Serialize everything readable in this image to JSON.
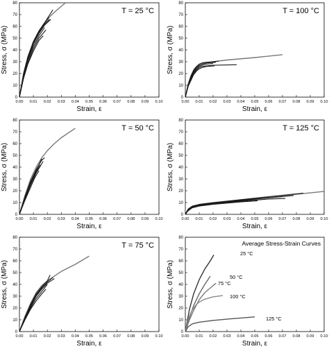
{
  "chart_data": [
    {
      "type": "line",
      "panel": "T = 25 °C",
      "temperature_label": "T = 25 °C",
      "xlabel": "Strain, ε",
      "ylabel": "Stress, σ (MPa)",
      "xlim": [
        0,
        0.1
      ],
      "ylim": [
        0,
        80
      ],
      "xticks": [
        "0.00",
        "0.01",
        "0.02",
        "0.03",
        "0.04",
        "0.05",
        "0.06",
        "0.07",
        "0.08",
        "0.09",
        "0.10"
      ],
      "yticks": [
        "0",
        "10",
        "20",
        "30",
        "40",
        "50",
        "60",
        "70",
        "80"
      ],
      "series": [
        {
          "x": [
            0,
            0.003,
            0.006,
            0.01,
            0.014,
            0.018,
            0.022,
            0.026,
            0.03,
            0.033
          ],
          "y": [
            0,
            20,
            34,
            47,
            56,
            63,
            68.5,
            73,
            77,
            80
          ],
          "color": "#777777"
        },
        {
          "x": [
            0,
            0.003,
            0.006,
            0.01,
            0.014,
            0.018,
            0.021
          ],
          "y": [
            0,
            20,
            34,
            47,
            56,
            63,
            67.5
          ]
        },
        {
          "x": [
            0,
            0.003,
            0.006,
            0.01,
            0.014,
            0.018,
            0.0225
          ],
          "y": [
            0,
            19,
            32,
            45,
            54,
            61,
            66
          ]
        },
        {
          "x": [
            0,
            0.003,
            0.006,
            0.01,
            0.014,
            0.018
          ],
          "y": [
            0,
            18,
            31,
            43,
            52,
            59
          ]
        },
        {
          "x": [
            0,
            0.003,
            0.006,
            0.01,
            0.014,
            0.019
          ],
          "y": [
            0,
            17,
            29,
            41,
            50,
            57
          ]
        },
        {
          "x": [
            0,
            0.003,
            0.006,
            0.01,
            0.014,
            0.017
          ],
          "y": [
            0,
            16,
            28,
            39,
            48,
            52
          ]
        },
        {
          "x": [
            0,
            0.003,
            0.006,
            0.01,
            0.014,
            0.018,
            0.0215
          ],
          "y": [
            0,
            19,
            33,
            46,
            55,
            62,
            66
          ]
        },
        {
          "x": [
            0,
            0.003,
            0.006,
            0.01,
            0.014,
            0.018,
            0.024
          ],
          "y": [
            0,
            20,
            34,
            47,
            56,
            63,
            74
          ]
        }
      ]
    },
    {
      "type": "line",
      "panel": "T = 100 °C",
      "temperature_label": "T = 100 °C",
      "xlabel": "Strain, ε",
      "ylabel": "Stress, σ (MPa)",
      "xlim": [
        0,
        0.1
      ],
      "ylim": [
        0,
        80
      ],
      "xticks": [
        "0.00",
        "0.01",
        "0.02",
        "0.03",
        "0.04",
        "0.05",
        "0.06",
        "0.07",
        "0.08",
        "0.09",
        "0.10"
      ],
      "yticks": [
        "0",
        "10",
        "20",
        "30",
        "40",
        "50",
        "60",
        "70",
        "80"
      ],
      "series": [
        {
          "x": [
            0,
            0.002,
            0.004,
            0.006,
            0.008,
            0.01,
            0.012,
            0.015,
            0.02,
            0.03,
            0.05,
            0.07
          ],
          "y": [
            0,
            10,
            17,
            22,
            25,
            27,
            28,
            29,
            30,
            31.5,
            33.5,
            36
          ],
          "color": "#777777"
        },
        {
          "x": [
            0,
            0.002,
            0.004,
            0.006,
            0.008,
            0.01,
            0.012,
            0.015,
            0.02,
            0.024
          ],
          "y": [
            0,
            11,
            18,
            23,
            26,
            28,
            29,
            29.5,
            30,
            30.5
          ]
        },
        {
          "x": [
            0,
            0.002,
            0.004,
            0.006,
            0.008,
            0.01,
            0.012,
            0.015,
            0.02,
            0.037
          ],
          "y": [
            0,
            9,
            15,
            20,
            23,
            25,
            26,
            26.5,
            27,
            27.5
          ]
        },
        {
          "x": [
            0,
            0.002,
            0.004,
            0.006,
            0.008,
            0.01,
            0.012,
            0.015,
            0.02
          ],
          "y": [
            0,
            10,
            16,
            21,
            24,
            26,
            27,
            28,
            28.5
          ]
        },
        {
          "x": [
            0,
            0.002,
            0.004,
            0.006,
            0.008,
            0.01,
            0.012,
            0.015,
            0.021
          ],
          "y": [
            0,
            9,
            14,
            19,
            22,
            24,
            25,
            26,
            26.5
          ]
        },
        {
          "x": [
            0,
            0.002,
            0.004,
            0.006,
            0.008,
            0.01,
            0.012,
            0.015,
            0.022
          ],
          "y": [
            0,
            10,
            17,
            22,
            25,
            27,
            28,
            29,
            29.5
          ]
        }
      ]
    },
    {
      "type": "line",
      "panel": "T = 50 °C",
      "temperature_label": "T = 50 °C",
      "xlabel": "Strain, ε",
      "ylabel": "Stress, σ (MPa)",
      "xlim": [
        0,
        0.1
      ],
      "ylim": [
        0,
        80
      ],
      "xticks": [
        "0.00",
        "0.01",
        "0.02",
        "0.03",
        "0.04",
        "0.05",
        "0.06",
        "0.07",
        "0.08",
        "0.09",
        "0.10"
      ],
      "yticks": [
        "0",
        "10",
        "20",
        "30",
        "40",
        "50",
        "60",
        "70",
        "80"
      ],
      "series": [
        {
          "x": [
            0,
            0.004,
            0.008,
            0.012,
            0.016,
            0.02,
            0.025,
            0.03,
            0.035,
            0.04
          ],
          "y": [
            0,
            16,
            30,
            40,
            48,
            54,
            60,
            65,
            69,
            73
          ],
          "color": "#777777"
        },
        {
          "x": [
            0,
            0.004,
            0.008,
            0.012,
            0.016,
            0.018
          ],
          "y": [
            0,
            15,
            28,
            38,
            46,
            48
          ]
        },
        {
          "x": [
            0,
            0.004,
            0.008,
            0.012,
            0.015
          ],
          "y": [
            0,
            14,
            26,
            36,
            42
          ]
        },
        {
          "x": [
            0,
            0.004,
            0.008,
            0.012,
            0.017
          ],
          "y": [
            0,
            13,
            25,
            35,
            45
          ]
        },
        {
          "x": [
            0,
            0.004,
            0.008,
            0.011,
            0.014
          ],
          "y": [
            0,
            12,
            23,
            31,
            37
          ]
        },
        {
          "x": [
            0,
            0.004,
            0.008,
            0.012,
            0.016
          ],
          "y": [
            0,
            15,
            27,
            37,
            47
          ]
        }
      ]
    },
    {
      "type": "line",
      "panel": "T = 125 °C",
      "temperature_label": "T = 125 °C",
      "xlabel": "Strain, ε",
      "ylabel": "Stress, σ (MPa)",
      "xlim": [
        0,
        0.1
      ],
      "ylim": [
        0,
        80
      ],
      "xticks": [
        "0.00",
        "0.01",
        "0.02",
        "0.03",
        "0.04",
        "0.05",
        "0.06",
        "0.07",
        "0.08",
        "0.09",
        "0.10"
      ],
      "yticks": [
        "0",
        "10",
        "20",
        "30",
        "40",
        "50",
        "60",
        "70",
        "80"
      ],
      "series": [
        {
          "x": [
            0,
            0.002,
            0.005,
            0.01,
            0.02,
            0.04,
            0.06,
            0.08,
            0.1
          ],
          "y": [
            0,
            4,
            6.5,
            8,
            9.5,
            12,
            14.5,
            17,
            19.5
          ],
          "color": "#777777"
        },
        {
          "x": [
            0,
            0.002,
            0.005,
            0.01,
            0.02,
            0.04,
            0.06,
            0.085
          ],
          "y": [
            0,
            4.5,
            7,
            8.5,
            10,
            12.5,
            15,
            18
          ]
        },
        {
          "x": [
            0,
            0.002,
            0.005,
            0.01,
            0.02,
            0.04,
            0.06,
            0.078
          ],
          "y": [
            0,
            3.5,
            6,
            7.5,
            9,
            11.5,
            14,
            16
          ]
        },
        {
          "x": [
            0,
            0.002,
            0.005,
            0.01,
            0.02,
            0.04,
            0.06,
            0.07
          ],
          "y": [
            0,
            4,
            6.5,
            8,
            9.5,
            12,
            14,
            15
          ]
        },
        {
          "x": [
            0,
            0.002,
            0.005,
            0.01,
            0.02,
            0.04,
            0.052
          ],
          "y": [
            0,
            3,
            5.5,
            7,
            8.5,
            10.5,
            11.5
          ]
        },
        {
          "x": [
            0,
            0.002,
            0.005,
            0.01,
            0.02,
            0.04,
            0.06,
            0.072
          ],
          "y": [
            0,
            4,
            6,
            7.5,
            9,
            11,
            13,
            13.5
          ]
        }
      ]
    },
    {
      "type": "line",
      "panel": "T = 75 °C",
      "temperature_label": "T = 75 °C",
      "xlabel": "Strain, ε",
      "ylabel": "Stress, σ (MPa)",
      "xlim": [
        0,
        0.1
      ],
      "ylim": [
        0,
        80
      ],
      "xticks": [
        "0.00",
        "0.01",
        "0.02",
        "0.03",
        "0.04",
        "0.05",
        "0.06",
        "0.07",
        "0.08",
        "0.09",
        "0.10"
      ],
      "yticks": [
        "0",
        "10",
        "20",
        "30",
        "40",
        "50",
        "60",
        "70",
        "80"
      ],
      "series": [
        {
          "x": [
            0,
            0.004,
            0.008,
            0.012,
            0.016,
            0.02,
            0.025,
            0.03,
            0.04,
            0.05
          ],
          "y": [
            0,
            13,
            24,
            33,
            39,
            43,
            47,
            51,
            57,
            64
          ],
          "color": "#777777"
        },
        {
          "x": [
            0,
            0.004,
            0.008,
            0.012,
            0.016,
            0.02,
            0.022
          ],
          "y": [
            0,
            12,
            23,
            32,
            38,
            43,
            48
          ]
        },
        {
          "x": [
            0,
            0.004,
            0.008,
            0.012,
            0.016,
            0.02,
            0.025
          ],
          "y": [
            0,
            11,
            21,
            30,
            36,
            41,
            45
          ]
        },
        {
          "x": [
            0,
            0.004,
            0.008,
            0.012,
            0.016,
            0.02
          ],
          "y": [
            0,
            11,
            20,
            28,
            34,
            40
          ]
        },
        {
          "x": [
            0,
            0.004,
            0.008,
            0.012,
            0.016,
            0.019
          ],
          "y": [
            0,
            10,
            19,
            26,
            32,
            36
          ]
        },
        {
          "x": [
            0,
            0.004,
            0.008,
            0.012,
            0.016,
            0.02,
            0.024
          ],
          "y": [
            0,
            12,
            22,
            31,
            37,
            42,
            46
          ]
        }
      ]
    },
    {
      "type": "line",
      "panel": "Average Stress-Strain Curves",
      "title": "Average Stress-Strain Curves",
      "xlabel": "Strain, ε",
      "ylabel": "Stress, σ (MPa)",
      "xlim": [
        0,
        0.1
      ],
      "ylim": [
        0,
        80
      ],
      "xticks": [
        "0.00",
        "0.01",
        "0.02",
        "0.03",
        "0.04",
        "0.05",
        "0.06",
        "0.07",
        "0.08",
        "0.09",
        "0.10"
      ],
      "yticks": [
        "0",
        "10",
        "20",
        "30",
        "40",
        "50",
        "60",
        "70",
        "80"
      ],
      "series": [
        {
          "name": "25 °C",
          "color": "#333333",
          "x": [
            0,
            0.003,
            0.006,
            0.01,
            0.014,
            0.018,
            0.0205
          ],
          "y": [
            0,
            19,
            32,
            44,
            53,
            60,
            65
          ]
        },
        {
          "name": "50 °C",
          "color": "#666666",
          "x": [
            0,
            0.003,
            0.006,
            0.01,
            0.014,
            0.018
          ],
          "y": [
            0,
            12,
            22,
            32,
            40,
            47
          ]
        },
        {
          "name": "75 °C",
          "color": "#777777",
          "x": [
            0,
            0.003,
            0.006,
            0.01,
            0.014,
            0.018,
            0.022
          ],
          "y": [
            0,
            10,
            18,
            27,
            33,
            37,
            41
          ]
        },
        {
          "name": "100 °C",
          "color": "#888888",
          "x": [
            0,
            0.002,
            0.004,
            0.006,
            0.008,
            0.01,
            0.014,
            0.02,
            0.027
          ],
          "y": [
            0,
            10,
            16,
            20,
            23,
            25,
            27.5,
            29.5,
            30.5
          ]
        },
        {
          "name": "125 °C",
          "color": "#555555",
          "x": [
            0,
            0.002,
            0.005,
            0.01,
            0.02,
            0.03,
            0.04,
            0.05
          ],
          "y": [
            0,
            4,
            6.5,
            8,
            9.5,
            10.5,
            11.5,
            12.5
          ]
        }
      ],
      "annotations": [
        "25 °C",
        "50 °C",
        "75 °C",
        "100 °C",
        "125 °C"
      ]
    }
  ]
}
